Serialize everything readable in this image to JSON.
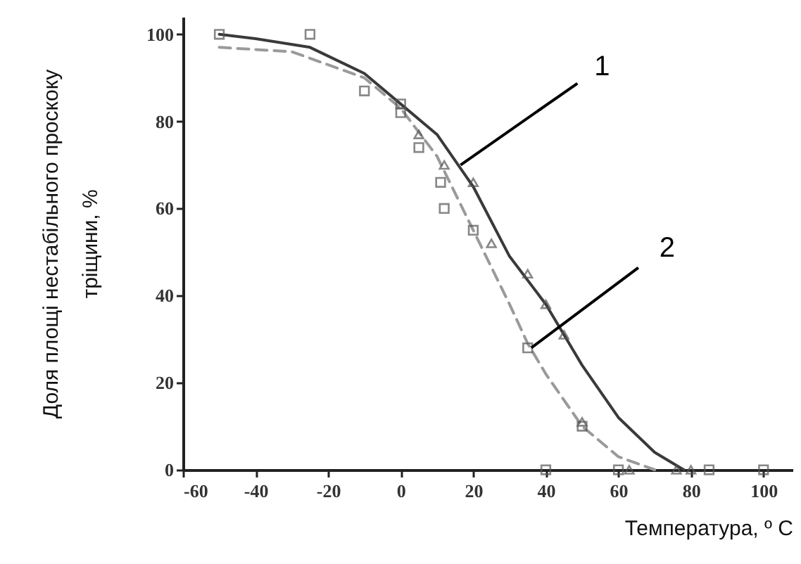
{
  "chart_data": {
    "type": "scatter",
    "xlabel": "Температура, º С",
    "ylabel": "Доля площі нестабільного проскоку тріщини, %",
    "xlim": [
      -60,
      108
    ],
    "ylim": [
      0,
      104
    ],
    "xticks": [
      -60,
      -40,
      -20,
      0,
      20,
      40,
      60,
      80,
      100
    ],
    "yticks": [
      0,
      20,
      40,
      60,
      80,
      100
    ],
    "grid": false,
    "series": [
      {
        "type": "line",
        "color": "#3a3a3a",
        "line_style": "solid",
        "marker": "none",
        "x": [
          -50,
          -40,
          -25,
          -10,
          0,
          10,
          20,
          25,
          30,
          40,
          45,
          50,
          60,
          70,
          78
        ],
        "values": [
          100,
          99,
          97,
          91,
          84,
          77,
          65,
          57,
          49,
          38,
          31,
          24,
          12,
          4,
          0
        ]
      },
      {
        "type": "line",
        "color": "#9a9a9a",
        "line_style": "dashed",
        "marker": "none",
        "x": [
          -50,
          -30,
          -10,
          0,
          10,
          20,
          30,
          35,
          40,
          50,
          60,
          70
        ],
        "values": [
          97,
          96,
          90,
          83,
          72,
          55,
          38,
          29,
          22,
          10,
          3,
          0
        ]
      },
      {
        "color": "#555555",
        "marker": "square",
        "x": [
          -50,
          -25,
          -10,
          0,
          0,
          5,
          11,
          12,
          20,
          35,
          50,
          40,
          60,
          85,
          100
        ],
        "values": [
          100,
          100,
          87,
          84,
          82,
          74,
          66,
          60,
          55,
          28,
          10,
          0,
          0,
          0,
          0
        ]
      },
      {
        "color": "#555555",
        "marker": "triangle",
        "x": [
          5,
          12,
          20,
          25,
          35,
          40,
          45,
          50,
          63,
          76,
          80
        ],
        "values": [
          77,
          70,
          66,
          52,
          45,
          38,
          31,
          11,
          0,
          0,
          0
        ]
      }
    ],
    "annotations": [
      {
        "text": "1",
        "x": 16.5,
        "y": 70
      },
      {
        "text": "2",
        "x": 36,
        "y": 28
      }
    ]
  }
}
